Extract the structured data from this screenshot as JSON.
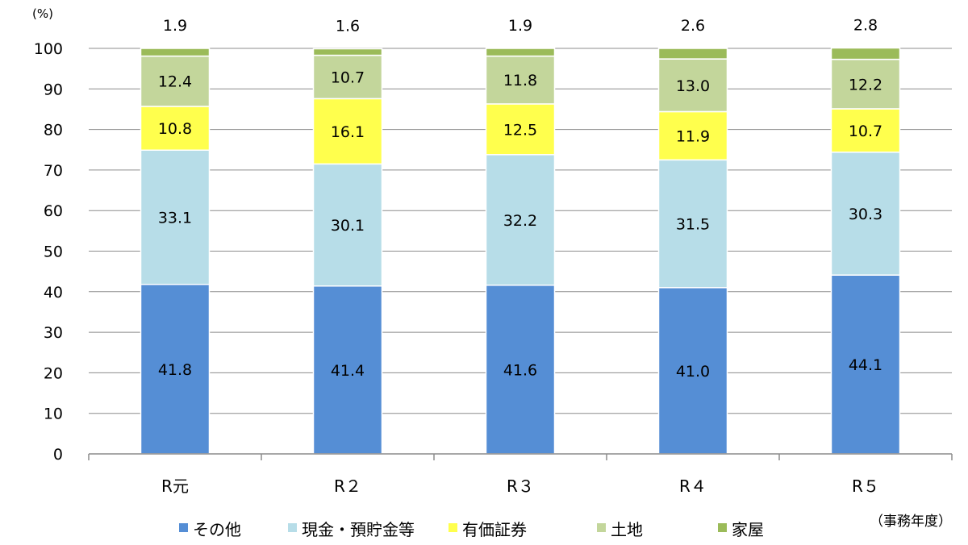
{
  "chart_data": {
    "type": "bar",
    "stacked": true,
    "y_unit": "(%)",
    "x_unit": "（事務年度）",
    "ylim": [
      0,
      100
    ],
    "yticks": [
      0,
      10,
      20,
      30,
      40,
      50,
      60,
      70,
      80,
      90,
      100
    ],
    "grid": true,
    "legend_position": "bottom",
    "categories": [
      "R元",
      "R２",
      "R３",
      "R４",
      "R５"
    ],
    "series": [
      {
        "name": "その他",
        "color": "#558ed5",
        "values": [
          41.8,
          41.4,
          41.6,
          41.0,
          44.1
        ]
      },
      {
        "name": "現金・預貯金等",
        "color": "#b7dde8",
        "values": [
          33.1,
          30.1,
          32.2,
          31.5,
          30.3
        ]
      },
      {
        "name": "有価証券",
        "color": "#ffff4d",
        "values": [
          10.8,
          16.1,
          12.5,
          11.9,
          10.7
        ]
      },
      {
        "name": "土地",
        "color": "#c3d69b",
        "values": [
          12.4,
          10.7,
          11.8,
          13.0,
          12.2
        ]
      },
      {
        "name": "家屋",
        "color": "#9bbb59",
        "values": [
          1.9,
          1.6,
          1.9,
          2.6,
          2.8
        ]
      }
    ]
  }
}
